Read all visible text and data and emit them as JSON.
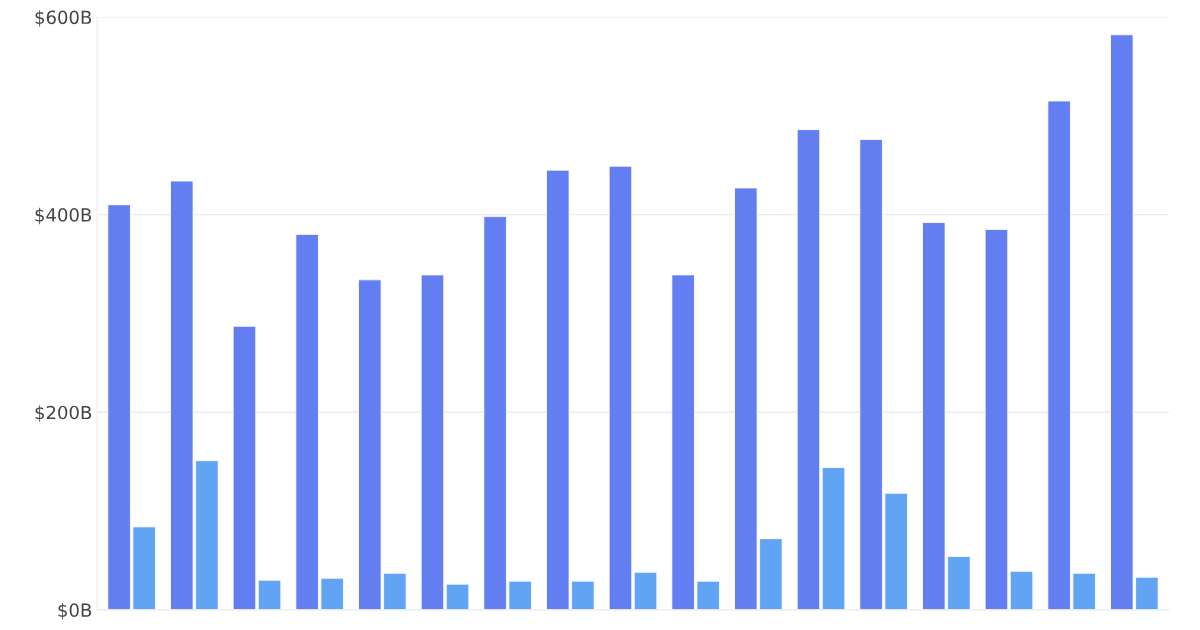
{
  "chart_data": {
    "type": "bar",
    "categories": [
      null,
      null,
      null,
      null,
      null,
      null,
      null,
      null,
      null,
      null,
      null,
      null,
      null,
      null,
      null,
      null,
      null
    ],
    "series": [
      {
        "color": "#637ef0",
        "values": [
          410,
          434,
          287,
          380,
          334,
          339,
          398,
          445,
          449,
          339,
          427,
          486,
          476,
          392,
          385,
          515,
          582
        ]
      },
      {
        "color": "#62a4f4",
        "values": [
          84,
          151,
          30,
          32,
          37,
          26,
          29,
          29,
          38,
          29,
          72,
          144,
          118,
          54,
          39,
          37,
          33
        ]
      }
    ],
    "ylim": [
      0,
      600
    ],
    "yticks": [
      {
        "value": 0,
        "label": "$0B"
      },
      {
        "value": 200,
        "label": "$200B"
      },
      {
        "value": 400,
        "label": "$400B"
      },
      {
        "value": 600,
        "label": "$600B"
      }
    ],
    "grid": "y",
    "tick_labels": "y"
  }
}
